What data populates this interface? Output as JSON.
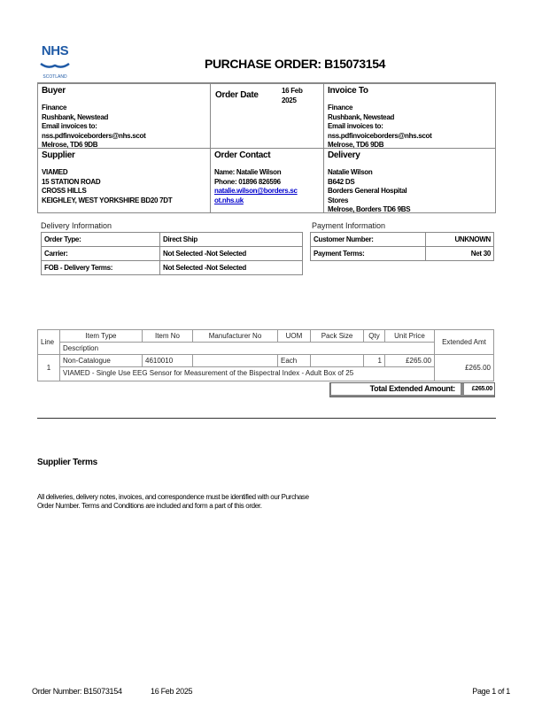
{
  "logo": {
    "text": "NHS",
    "sub": "SCOTLAND",
    "color": "#1f5aa6"
  },
  "title": "PURCHASE ORDER: B15073154",
  "buyer": {
    "label": "Buyer",
    "lines": [
      "Finance",
      "Rushbank, Newstead",
      "Email invoices to:",
      "nss.pdfinvoiceborders@nhs.scot",
      "Melrose,  TD6 9DB"
    ]
  },
  "order_date": {
    "label": "Order Date",
    "value_line1": "16 Feb",
    "value_line2": "2025"
  },
  "invoice_to": {
    "label": "Invoice To",
    "lines": [
      "Finance",
      "Rushbank, Newstead",
      "Email invoices to:",
      "nss.pdfinvoiceborders@nhs.scot",
      "Melrose,    TD6 9DB"
    ]
  },
  "supplier": {
    "label": "Supplier",
    "lines": [
      "VIAMED",
      "15 STATION ROAD",
      "CROSS HILLS",
      "KEIGHLEY, WEST YORKSHIRE BD20 7DT"
    ]
  },
  "order_contact": {
    "label": "Order Contact",
    "name": "Name: Natalie Wilson",
    "phone": "Phone: 01896 826596",
    "email_line1": "natalie.wilson@borders.sc",
    "email_line2": "ot.nhs.uk"
  },
  "delivery": {
    "label": "Delivery",
    "lines": [
      "Natalie Wilson",
      "B642 DS",
      "Borders General Hospital",
      "Stores",
      "Melrose, Borders TD6 9BS"
    ]
  },
  "delivery_info": {
    "title": "Delivery Information",
    "rows": [
      [
        "Order Type:",
        "Direct Ship"
      ],
      [
        "Carrier:",
        "Not Selected  -Not Selected"
      ],
      [
        "FOB - Delivery Terms:",
        "Not Selected  -Not Selected"
      ]
    ]
  },
  "payment_info": {
    "title": "Payment Information",
    "rows": [
      [
        "Customer Number:",
        "UNKNOWN"
      ],
      [
        "Payment Terms:",
        "Net 30"
      ]
    ]
  },
  "items": {
    "headers": {
      "line": "Line",
      "item_type": "Item Type",
      "item_no": "Item No",
      "manufacturer_no": "Manufacturer No",
      "uom": "UOM",
      "pack_size": "Pack Size",
      "qty": "Qty",
      "unit_price": "Unit Price",
      "extended_amt": "Extended Amt",
      "description": "Description"
    },
    "rows": [
      {
        "line": "1",
        "item_type": "Non-Catalogue",
        "item_no": "4610010",
        "manufacturer_no": "",
        "uom": "Each",
        "pack_size": "",
        "qty": "1",
        "unit_price": "£265.00",
        "extended_amt": "£265.00",
        "description": "VIAMED - Single Use EEG Sensor for Measurement of the Bispectral Index - Adult Box of 25"
      }
    ],
    "total_label": "Total Extended Amount:",
    "total_value": "£265.00"
  },
  "supplier_terms": {
    "title": "Supplier Terms",
    "text_line1": "All deliveries, delivery notes, invoices, and correspondence must be identified with our Purchase",
    "text_line2": "Order Number. Terms and Conditions are included and form a part of this order."
  },
  "footer": {
    "order_number": "Order Number: B15073154",
    "date": "16 Feb 2025",
    "page": "Page 1 of 1"
  }
}
